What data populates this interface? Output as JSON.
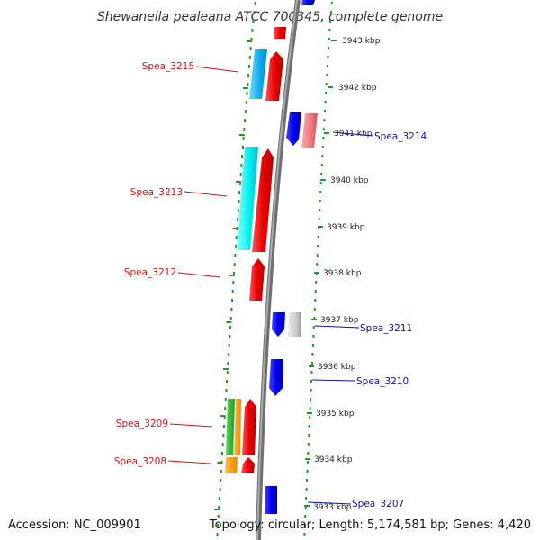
{
  "title": "Shewanella pealeana ATCC 700345, complete genome",
  "footer": {
    "accession": "Accession: NC_009901",
    "stats": "Topology: circular; Length: 5,174,581 bp; Genes: 4,420"
  },
  "scale": {
    "unit": "kbp",
    "ticks": [
      "3943 kbp",
      "3942 kbp",
      "3941 kbp",
      "3940 kbp",
      "3939 kbp",
      "3938 kbp",
      "3937 kbp",
      "3936 kbp",
      "3935 kbp",
      "3934 kbp",
      "3933 kbp"
    ]
  },
  "colors": {
    "backbone": "#888888",
    "forward": "#ee1111",
    "reverse": "#1111ee",
    "left_label": "#cc1111",
    "right_label": "#111199",
    "dots": "#229922"
  },
  "left_labels": [
    "Spea_3215",
    "Spea_3213",
    "Spea_3212",
    "Spea_3209",
    "Spea_3208"
  ],
  "right_labels": [
    "Spea_3214",
    "Spea_3211",
    "Spea_3210",
    "Spea_3207"
  ]
}
